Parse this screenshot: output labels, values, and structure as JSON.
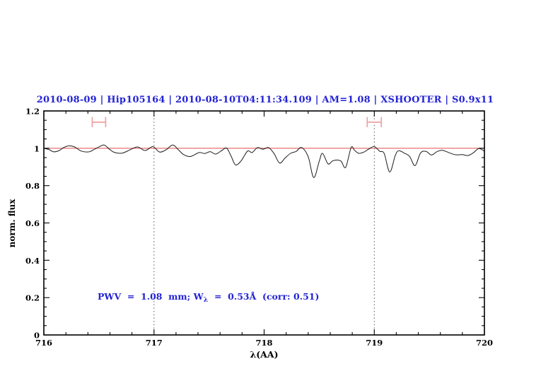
{
  "title": {
    "text": "2010-08-09 | Hip105164 | 2010-08-10T04:11:34.109 | AM=1.08 | XSHOOTER | S0.9x11",
    "color": "#2323d6"
  },
  "annotation": {
    "prefix": "PWV  =  1.08  mm; W",
    "subscript": "λ",
    "suffix": "  =  0.53Å  (corr: 0.51)",
    "color": "#2323d6"
  },
  "chart_data": {
    "type": "line",
    "title": "2010-08-09 | Hip105164 | 2010-08-10T04:11:34.109 | AM=1.08 | XSHOOTER | S0.9x11",
    "xlabel": "λ(AA)",
    "ylabel": "norm. flux",
    "xlim": [
      716,
      720
    ],
    "ylim": [
      0,
      1.2
    ],
    "grid": false,
    "legend": "none",
    "x_major_ticks": [
      716,
      717,
      718,
      719,
      720
    ],
    "x_tick_labels": [
      "716",
      "717",
      "718",
      "719",
      "720"
    ],
    "x_minor_step": 0.2,
    "y_major_ticks": [
      0,
      0.2,
      0.4,
      0.6,
      0.8,
      1,
      1.2
    ],
    "y_tick_labels": [
      "0",
      "0.2",
      "0.4",
      "0.6",
      "0.8",
      "1",
      "1.2"
    ],
    "y_minor_step": 0.05,
    "dotted_vlines_x": [
      717,
      719
    ],
    "dotted_line_color": "#555555",
    "continuum": {
      "y": 1.0,
      "color": "#e36161"
    },
    "marker_color": "#f0a0a0",
    "band_markers": [
      {
        "x_center": 716.5,
        "x_half_width": 0.061,
        "y": 1.14,
        "cap_half_height": 0.027
      },
      {
        "x_center": 719.0,
        "x_half_width": 0.064,
        "y": 1.14,
        "cap_half_height": 0.027
      }
    ],
    "axis_color": "#000000",
    "series": [
      {
        "name": "observed-spectrum",
        "color": "#1c1c1c",
        "x": [
          716.0,
          716.05,
          716.09,
          716.14,
          716.18,
          716.23,
          716.28,
          716.34,
          716.41,
          716.46,
          716.51,
          716.55,
          716.6,
          716.64,
          716.71,
          716.78,
          716.85,
          716.92,
          716.99,
          717.05,
          717.11,
          717.17,
          717.22,
          717.27,
          717.33,
          717.41,
          717.46,
          717.51,
          717.56,
          717.62,
          717.66,
          717.7,
          717.74,
          717.79,
          717.85,
          717.89,
          717.94,
          717.99,
          718.04,
          718.09,
          718.14,
          718.19,
          718.24,
          718.29,
          718.34,
          718.4,
          718.45,
          718.5,
          718.53,
          718.58,
          718.62,
          718.66,
          718.7,
          718.74,
          718.79,
          718.82,
          718.86,
          718.91,
          718.95,
          719.0,
          719.05,
          719.09,
          719.14,
          719.19,
          719.22,
          719.27,
          719.32,
          719.37,
          719.42,
          719.47,
          719.52,
          719.57,
          719.62,
          719.68,
          719.74,
          719.8,
          719.85,
          719.9,
          719.95,
          720.0
        ],
        "y": [
          1.0,
          0.992,
          0.981,
          0.988,
          1.004,
          1.013,
          1.007,
          0.985,
          0.981,
          0.995,
          1.01,
          1.017,
          0.993,
          0.978,
          0.974,
          0.991,
          1.007,
          0.988,
          1.009,
          0.98,
          0.992,
          1.018,
          0.993,
          0.966,
          0.956,
          0.977,
          0.972,
          0.982,
          0.969,
          0.99,
          1.001,
          0.958,
          0.911,
          0.932,
          0.985,
          0.977,
          1.004,
          0.995,
          1.004,
          0.972,
          0.921,
          0.948,
          0.973,
          0.983,
          1.004,
          0.955,
          0.843,
          0.93,
          0.973,
          0.917,
          0.932,
          0.937,
          0.93,
          0.898,
          1.004,
          0.99,
          0.973,
          0.981,
          0.996,
          1.009,
          0.984,
          0.972,
          0.873,
          0.96,
          0.987,
          0.975,
          0.957,
          0.907,
          0.975,
          0.983,
          0.964,
          0.982,
          0.989,
          0.976,
          0.965,
          0.966,
          0.961,
          0.976,
          0.999,
          0.984
        ]
      }
    ]
  }
}
